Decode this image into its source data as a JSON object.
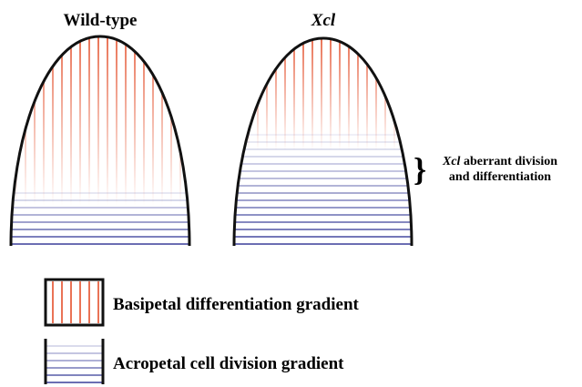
{
  "panels": [
    {
      "label": "Wild-type"
    },
    {
      "label": "Xcl"
    }
  ],
  "annotation": {
    "gene": "Xcl",
    "line1": "aberrant division",
    "line2": "and differentiation"
  },
  "legend": [
    {
      "label": "Basipetal differentiation gradient"
    },
    {
      "label": "Acropetal cell division gradient"
    }
  ]
}
